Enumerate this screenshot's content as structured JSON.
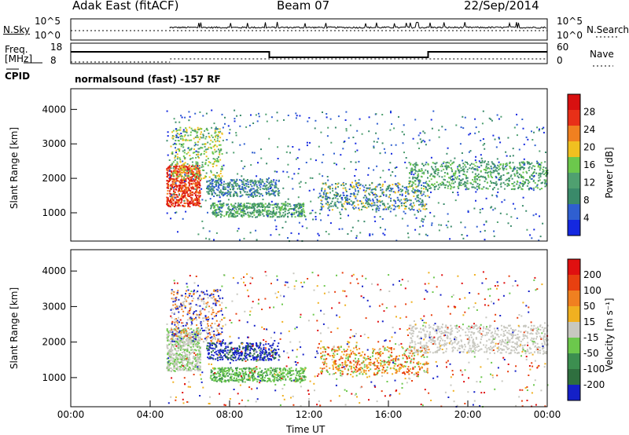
{
  "header": {
    "station": "Adak East (fitACF)",
    "beam": "Beam 07",
    "date": "22/Sep/2014"
  },
  "colors": {
    "power_scale": [
      "#1428e0",
      "#2f5fd0",
      "#3a8a6a",
      "#4fa070",
      "#6cc84c",
      "#f0c020",
      "#f08020",
      "#e83018",
      "#d81010"
    ],
    "velocity_scale": [
      "#1420c8",
      "#2f6f3f",
      "#3c8f50",
      "#6cc84c",
      "#c8c8c0",
      "#f0b020",
      "#f08020",
      "#e84010",
      "#e01010"
    ]
  },
  "chart_data": [
    {
      "type": "line",
      "name": "noise-panel",
      "left_label": "N.Sky",
      "right_label": "N.Search",
      "ticks_left": [
        "10^5",
        "10^0"
      ],
      "ticks_right": [
        "10^5",
        "10^0"
      ]
    },
    {
      "type": "line",
      "name": "frequency-panel",
      "left_label_lines": [
        "Freq.",
        "[MHz]"
      ],
      "cpid_label": "CPID",
      "right_label": "Nave",
      "ticks_left": [
        "18",
        "8"
      ],
      "ticks_right": [
        "60",
        "0"
      ],
      "mode_text": "normalsound (fast) -157 RF",
      "step_line": {
        "x_hours": [
          0,
          10,
          10,
          18,
          18,
          24
        ],
        "level": [
          "high",
          "high",
          "low",
          "low",
          "high",
          "high"
        ]
      }
    },
    {
      "type": "heatmap",
      "name": "power-panel",
      "xlim": [
        0,
        24
      ],
      "ylim": [
        180,
        4600
      ],
      "ylabel": "Slant Range [km]",
      "yticks": [
        1000,
        2000,
        3000,
        4000
      ],
      "colorbar_label": "Power [dB]",
      "colorbar_ticks": [
        "28",
        "24",
        "20",
        "16",
        "12",
        "8",
        "4"
      ]
    },
    {
      "type": "heatmap",
      "name": "velocity-panel",
      "xlim": [
        0,
        24
      ],
      "ylim": [
        180,
        4600
      ],
      "xlabel": "Time UT",
      "ylabel": "Slant Range [km]",
      "xtick_labels": [
        "00:00",
        "04:00",
        "08:00",
        "12:00",
        "16:00",
        "20:00",
        "00:00"
      ],
      "yticks": [
        1000,
        2000,
        3000,
        4000
      ],
      "colorbar_label": "Velocity [m s⁻¹]",
      "colorbar_ticks": [
        "200",
        "100",
        "50",
        "15",
        "-15",
        "-50",
        "-100",
        "-200"
      ]
    }
  ]
}
